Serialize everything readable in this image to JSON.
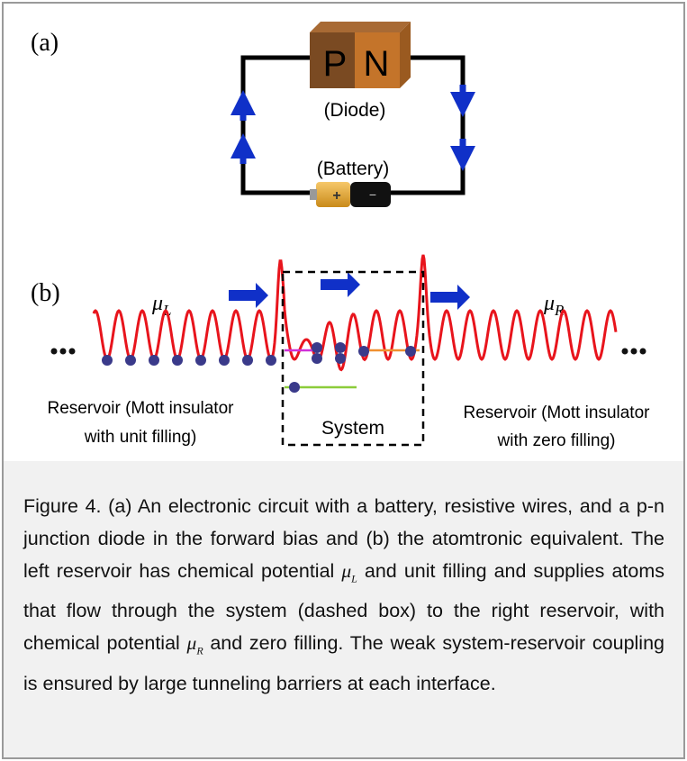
{
  "figure": {
    "panel_a": {
      "label": "(a)",
      "diode_p": "P",
      "diode_n": "N",
      "diode_label": "(Diode)",
      "battery_label": "(Battery)",
      "battery_plus": "+",
      "battery_minus": "−"
    },
    "panel_b": {
      "label": "(b)",
      "mu_left": {
        "symbol": "μ",
        "sub": "L"
      },
      "mu_right": {
        "symbol": "μ",
        "sub": "R"
      },
      "left_reservoir": [
        "Reservoir (Mott insulator",
        "with unit filling)"
      ],
      "system": "System",
      "right_reservoir": [
        "Reservoir (Mott insulator",
        "with zero filling)"
      ]
    }
  },
  "caption": [
    "Figure 4. (a) An electronic circuit with a battery, resistive wires, and a p-n junction diode in the forward bias and (b) the  atomtronic equivalent. The left reservoir has chemical potential ",
    {
      "symbol": "μ",
      "sub": "L"
    },
    " and unit filling and supplies atoms that flow through the system (dashed box) to the right reservoir, with chemical potential ",
    {
      "symbol": "μ",
      "sub": "R"
    },
    " and zero filling. The weak system-reservoir coupling is ensured by large tunneling barriers at each interface."
  ]
}
